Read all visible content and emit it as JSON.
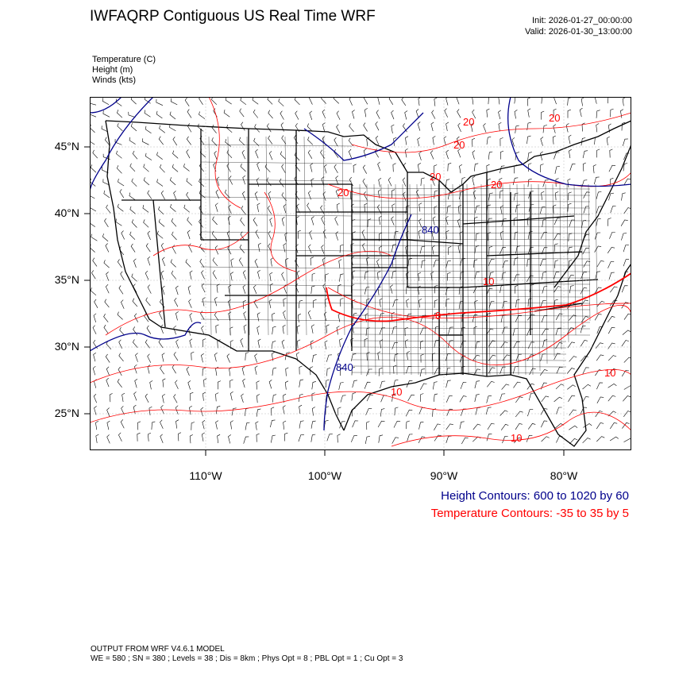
{
  "header": {
    "title": "IWFAQRP Contiguous US Real Time WRF",
    "init": "Init: 2026-01-27_00:00:00",
    "valid": "Valid: 2026-01-30_13:00:00"
  },
  "variables": {
    "temperature": "Temperature   (C)",
    "height": "Height   (m)",
    "winds": "Winds   (kts)"
  },
  "axes": {
    "lat_labels": [
      "45°N",
      "40°N",
      "35°N",
      "30°N",
      "25°N"
    ],
    "lon_labels": [
      "110°W",
      "100°W",
      "90°W",
      "80°W"
    ]
  },
  "contour_labels": {
    "height": [
      "840",
      "840"
    ],
    "temperature": [
      "20",
      "20",
      "20",
      "20",
      "20",
      "20",
      "10",
      "0",
      "10",
      "10",
      "10"
    ]
  },
  "legend": {
    "height": "Height Contours: 600 to 1020 by 60",
    "temperature": "Temperature Contours: -35 to 35 by 5"
  },
  "footer": {
    "line1": "OUTPUT FROM WRF V4.6.1 MODEL",
    "line2": "WE = 580 ; SN = 380 ; Levels = 38 ; Dis = 8km ; Phys Opt = 8 ; PBL Opt = 1 ; Cu Opt = 3"
  },
  "colors": {
    "height_contour": "#00008b",
    "temperature_contour": "#ff0000",
    "map_lines": "#000000"
  }
}
